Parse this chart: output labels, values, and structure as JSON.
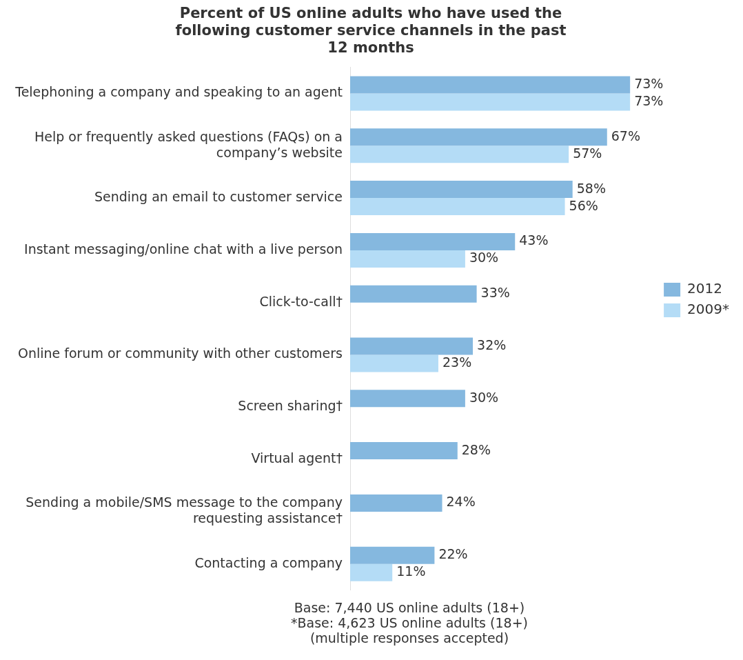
{
  "chart_data": {
    "type": "bar",
    "orientation": "horizontal",
    "tick_labels": "y",
    "title": "Percent of US online adults who have used the following customer service channels in the past 12 months",
    "categories": [
      "Telephoning a company and speaking to an agent",
      "Help or frequently asked questions (FAQs) on a company’s website",
      "Sending an email to customer service",
      "Instant messaging/online chat with a live person",
      "Click-to-call†",
      "Online forum or community with other customers",
      "Screen sharing†",
      "Virtual agent†",
      "Sending a mobile/SMS message to the company requesting assistance†",
      "Contacting a company"
    ],
    "series": [
      {
        "name": "2012",
        "color": "#85b8df",
        "values": [
          73,
          67,
          58,
          43,
          33,
          32,
          30,
          28,
          24,
          22
        ],
        "value_labels": [
          "73%",
          "67%",
          "58%",
          "43%",
          "33%",
          "32%",
          "30%",
          "28%",
          "24%",
          "22%"
        ]
      },
      {
        "name": "2009*",
        "color": "#b4dcf6",
        "values": [
          73,
          57,
          56,
          30,
          null,
          23,
          null,
          null,
          null,
          11
        ],
        "value_labels": [
          "73%",
          "57%",
          "56%",
          "30%",
          null,
          "23%",
          null,
          null,
          null,
          "11%"
        ]
      }
    ],
    "legend": "right",
    "annotations": [
      "Base: 7,440 US online adults (18+)",
      "*Base: 4,623 US online adults (18+)",
      "(multiple responses accepted)"
    ]
  }
}
